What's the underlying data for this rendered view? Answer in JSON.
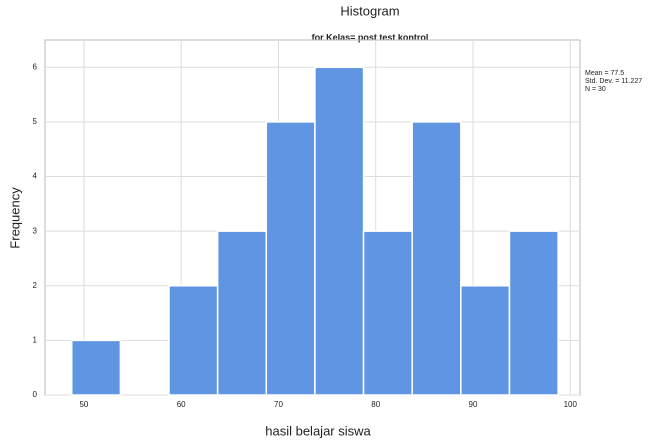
{
  "chart_data": {
    "type": "histogram",
    "title": "Histogram",
    "subtitle": "for Kelas= post test kontrol",
    "x_label": "hasil belajar siswa",
    "y_label": "Frequency",
    "bins": [
      48.75,
      53.75,
      58.75,
      63.75,
      68.75,
      73.75,
      78.75,
      83.75,
      88.75,
      93.75,
      98.75
    ],
    "values": [
      1,
      0,
      2,
      3,
      5,
      6,
      3,
      5,
      2,
      3
    ],
    "color": "#5f95e2",
    "xlim": [
      46,
      101
    ],
    "xticks": [
      50,
      60,
      70,
      80,
      90,
      100
    ],
    "ylim": [
      0,
      6.5
    ],
    "yticks": [
      0,
      1,
      2,
      3,
      4,
      5,
      6
    ],
    "grid": true,
    "stats": [
      "Mean = 77.5",
      "Std. Dev. = 11.227",
      "N = 30"
    ]
  }
}
